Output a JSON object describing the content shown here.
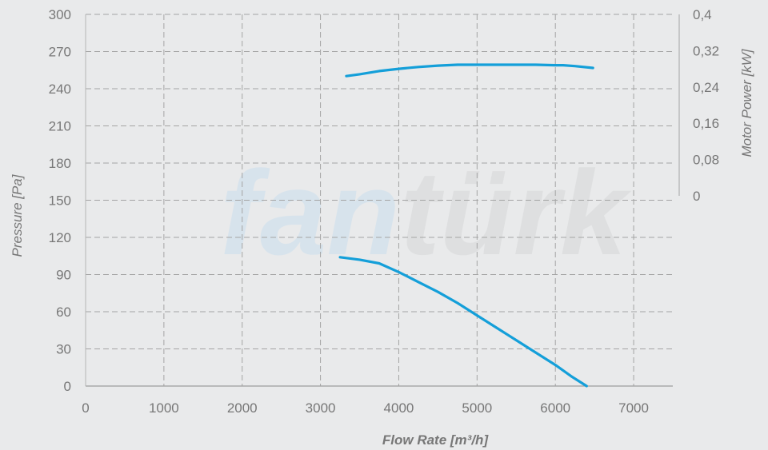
{
  "watermark": {
    "part1": "fan",
    "part2": "türk",
    "color1": "#d7e3ec",
    "color2": "#dedfe0"
  },
  "chart_data": {
    "type": "line",
    "xlabel": "Flow Rate [m³/h]",
    "ylabel": "Pressure [Pa]",
    "y2label": "Motor Power [kW]",
    "xlim": [
      0,
      7500
    ],
    "ylim": [
      0,
      300
    ],
    "y2lim": [
      0,
      0.4
    ],
    "x_ticks": [
      "0",
      "1000",
      "2000",
      "3000",
      "4000",
      "5000",
      "6000",
      "7000"
    ],
    "y_ticks": [
      "0",
      "30",
      "60",
      "90",
      "120",
      "150",
      "180",
      "210",
      "240",
      "270",
      "300"
    ],
    "y2_ticks": [
      "0",
      "0,08",
      "0,16",
      "0,24",
      "0,32",
      "0,4"
    ],
    "grid": true,
    "series_color": "#149fd9",
    "series": [
      {
        "axis": "pressure",
        "x": [
          3250,
          3500,
          3750,
          4000,
          4250,
          4500,
          4750,
          5000,
          5250,
          5500,
          5750,
          6000,
          6200,
          6400
        ],
        "y": [
          104,
          102,
          99,
          92,
          84,
          76,
          67,
          57,
          47,
          37,
          27,
          17,
          8,
          0
        ]
      },
      {
        "axis": "power",
        "x": [
          3330,
          3500,
          3750,
          4000,
          4250,
          4500,
          4750,
          5000,
          5250,
          5500,
          5750,
          6000,
          6100,
          6250,
          6480
        ],
        "y": [
          0.264,
          0.268,
          0.275,
          0.28,
          0.284,
          0.287,
          0.289,
          0.289,
          0.289,
          0.289,
          0.289,
          0.288,
          0.288,
          0.286,
          0.282
        ]
      }
    ]
  }
}
